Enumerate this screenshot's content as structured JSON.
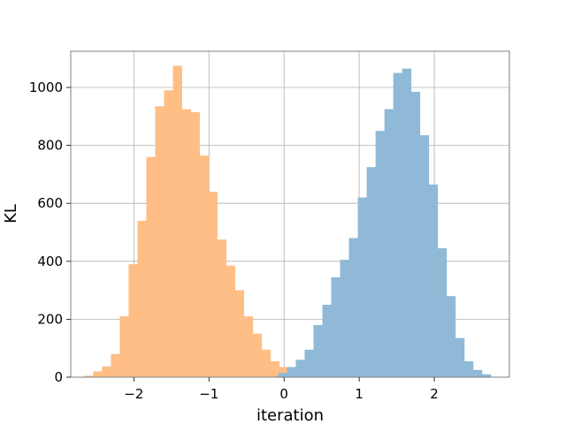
{
  "chart_data": {
    "type": "bar",
    "xlabel": "iteration",
    "ylabel": "KL",
    "xlim": [
      -2.84,
      3.0
    ],
    "ylim": [
      0,
      1125
    ],
    "grid": true,
    "x_ticks": [
      -2,
      -1,
      0,
      1,
      2
    ],
    "x_tick_labels": [
      "−2",
      "−1",
      "0",
      "1",
      "2"
    ],
    "y_ticks": [
      0,
      200,
      400,
      600,
      800,
      1000
    ],
    "y_tick_labels": [
      "0",
      "200",
      "400",
      "600",
      "800",
      "1000"
    ],
    "bin_width": 0.118,
    "series": [
      {
        "color": "#ffbe86",
        "bin_start": -2.66,
        "values": [
          5,
          20,
          37,
          80,
          210,
          390,
          540,
          760,
          935,
          990,
          1075,
          925,
          915,
          765,
          640,
          475,
          385,
          300,
          210,
          150,
          95,
          55,
          35,
          10,
          5
        ]
      },
      {
        "color": "#8fb9d7",
        "bin_start": -0.08,
        "values": [
          15,
          35,
          60,
          95,
          180,
          250,
          345,
          405,
          480,
          620,
          725,
          850,
          925,
          1050,
          1065,
          985,
          835,
          665,
          445,
          280,
          135,
          55,
          25,
          10
        ]
      }
    ]
  }
}
